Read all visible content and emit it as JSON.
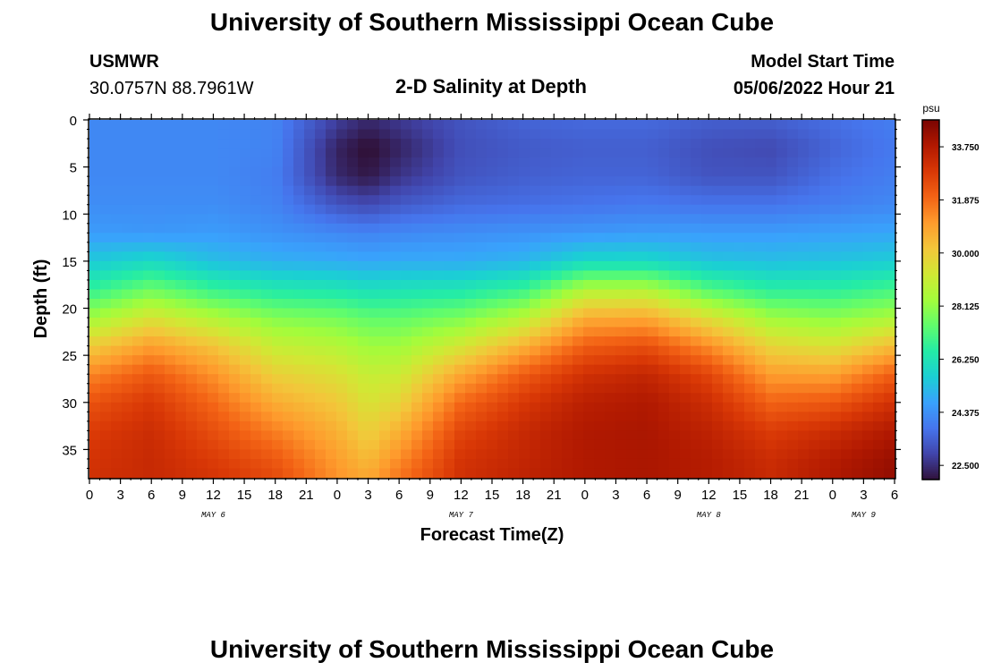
{
  "page": {
    "title": "University of Southern Mississippi Ocean Cube",
    "footer_title": "University of Southern Mississippi Ocean Cube",
    "station": "USMWR",
    "coords": "30.0757N  88.7961W",
    "subtitle": "2-D Salinity at Depth",
    "model_start_label": "Model Start Time",
    "model_start_value": "05/06/2022 Hour 21"
  },
  "chart_data": {
    "type": "heatmap",
    "title": "2-D Salinity at Depth",
    "xlabel": "Forecast Time(Z)",
    "ylabel": "Depth (ft)",
    "x_range_hours": [
      0,
      78
    ],
    "ylim": [
      0,
      38
    ],
    "y_inverted": true,
    "x_ticks": [
      "0",
      "3",
      "6",
      "9",
      "12",
      "15",
      "18",
      "21",
      "0",
      "3",
      "6",
      "9",
      "12",
      "15",
      "18",
      "21",
      "0",
      "3",
      "6",
      "9",
      "12",
      "15",
      "18",
      "21",
      "0",
      "3",
      "6"
    ],
    "y_ticks": [
      "0",
      "5",
      "10",
      "15",
      "20",
      "25",
      "30",
      "35"
    ],
    "day_labels": [
      {
        "label": "MAY 6",
        "hour": 12
      },
      {
        "label": "MAY 7",
        "hour": 36
      },
      {
        "label": "MAY 8",
        "hour": 60
      },
      {
        "label": "MAY 9",
        "hour": 75
      }
    ],
    "colorbar": {
      "unit": "psu",
      "min": 22.0,
      "max": 34.7,
      "tick_labels": [
        "33.750",
        "31.875",
        "30.000",
        "28.125",
        "26.250",
        "24.375",
        "22.500"
      ],
      "tick_values": [
        33.75,
        31.875,
        30.0,
        28.125,
        26.25,
        24.375,
        22.5
      ],
      "palette": [
        "#30123b",
        "#4145ab",
        "#4675ed",
        "#39a2fc",
        "#1bcfd4",
        "#24eca6",
        "#61fc6c",
        "#a4fc3b",
        "#d1e834",
        "#f3c63a",
        "#fe9b2d",
        "#f36315",
        "#d93806",
        "#b11901",
        "#7a0402"
      ]
    },
    "salinity_grid": {
      "description_hours": [
        0,
        6,
        12,
        18,
        24,
        27,
        30,
        36,
        42,
        48,
        54,
        60,
        66,
        72,
        78
      ],
      "depths_ft": [
        0,
        3,
        6,
        9,
        12,
        15,
        18,
        21,
        24,
        27,
        30,
        33,
        36,
        38
      ],
      "values": [
        [
          24.2,
          24.2,
          24.2,
          24.1,
          22.8,
          22.4,
          22.7,
          23.2,
          23.5,
          23.6,
          23.6,
          23.4,
          23.4,
          23.7,
          24.0
        ],
        [
          24.2,
          24.2,
          24.2,
          24.1,
          22.3,
          21.9,
          22.3,
          23.1,
          23.3,
          23.4,
          23.4,
          23.1,
          23.0,
          23.5,
          23.9
        ],
        [
          24.2,
          24.2,
          24.2,
          24.0,
          22.4,
          22.1,
          22.6,
          23.2,
          23.4,
          23.5,
          23.5,
          23.2,
          23.2,
          23.7,
          24.0
        ],
        [
          24.3,
          24.3,
          24.3,
          24.1,
          23.2,
          23.0,
          23.3,
          23.6,
          23.7,
          23.8,
          23.9,
          23.8,
          23.8,
          24.0,
          24.2
        ],
        [
          24.6,
          24.5,
          24.6,
          24.4,
          24.2,
          24.1,
          24.2,
          24.3,
          24.4,
          24.5,
          24.6,
          24.6,
          24.6,
          24.7,
          24.8
        ],
        [
          25.5,
          25.9,
          25.3,
          25.0,
          24.9,
          24.8,
          24.9,
          24.9,
          25.1,
          25.9,
          25.9,
          25.4,
          25.3,
          25.4,
          25.6
        ],
        [
          26.7,
          27.6,
          26.8,
          26.4,
          26.3,
          26.1,
          26.2,
          26.3,
          26.8,
          28.6,
          28.6,
          27.2,
          26.6,
          26.6,
          27.0
        ],
        [
          28.3,
          29.4,
          28.6,
          27.9,
          27.7,
          27.4,
          27.4,
          27.8,
          28.7,
          30.7,
          30.8,
          29.5,
          28.3,
          28.0,
          28.5
        ],
        [
          30.0,
          31.0,
          30.2,
          29.0,
          28.7,
          28.3,
          28.3,
          29.3,
          30.6,
          32.1,
          32.4,
          31.3,
          29.8,
          29.4,
          30.4
        ],
        [
          31.4,
          32.2,
          31.2,
          29.9,
          29.5,
          29.0,
          29.1,
          30.8,
          32.1,
          33.1,
          33.4,
          32.6,
          31.0,
          30.9,
          32.1
        ],
        [
          32.3,
          32.9,
          31.9,
          30.7,
          30.1,
          29.4,
          29.8,
          31.9,
          32.9,
          33.6,
          33.8,
          33.2,
          32.0,
          32.2,
          33.1
        ],
        [
          32.8,
          33.2,
          32.4,
          31.5,
          30.6,
          29.9,
          30.6,
          32.6,
          33.3,
          33.8,
          33.9,
          33.5,
          32.8,
          33.2,
          33.8
        ],
        [
          33.0,
          33.3,
          32.8,
          32.2,
          31.0,
          30.4,
          31.3,
          33.0,
          33.4,
          33.8,
          33.9,
          33.7,
          33.2,
          33.7,
          34.2
        ],
        [
          33.1,
          33.3,
          33.0,
          32.5,
          31.2,
          30.8,
          31.7,
          33.1,
          33.5,
          33.8,
          33.9,
          33.7,
          33.3,
          33.8,
          34.3
        ]
      ]
    }
  }
}
